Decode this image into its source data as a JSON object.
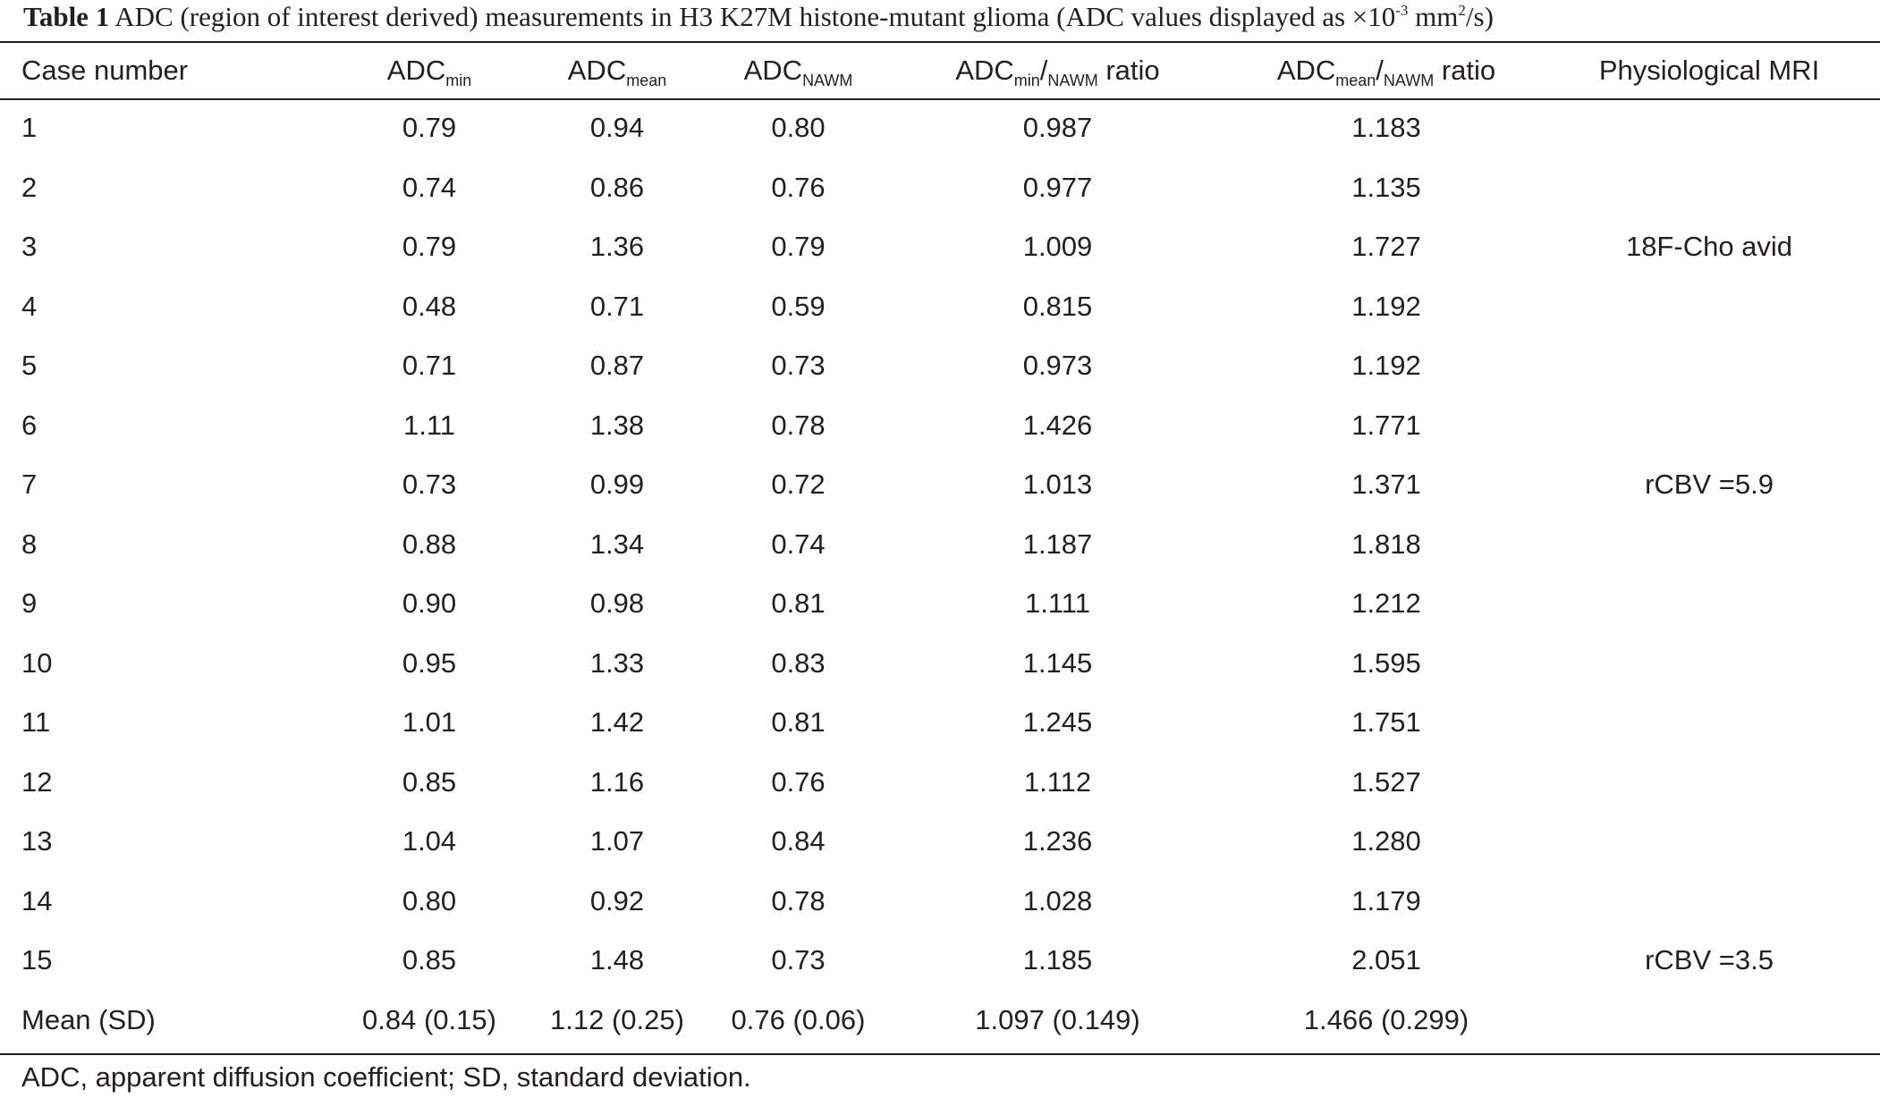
{
  "caption": {
    "label": "Table 1",
    "text_before_sup": "ADC (region of interest derived) measurements in H3 K27M histone-mutant glioma (ADC values displayed as ×10",
    "sup1": "-3",
    "text_mid": " mm",
    "sup2": "2",
    "text_after": "/s)"
  },
  "headers": {
    "case": "Case number",
    "adc_min": {
      "base": "ADC",
      "sub": "min"
    },
    "adc_mean": {
      "base": "ADC",
      "sub": "mean"
    },
    "adc_nawm": {
      "base": "ADC",
      "sub": "NAWM"
    },
    "min_ratio": {
      "base": "ADC",
      "sub1": "min",
      "slash": "/",
      "sub2": "NAWM",
      "suffix": " ratio"
    },
    "mean_ratio": {
      "base": "ADC",
      "sub1": "mean",
      "slash": "/",
      "sub2": "NAWM",
      "suffix": " ratio"
    },
    "physio": "Physiological MRI"
  },
  "rows": [
    [
      "1",
      "0.79",
      "0.94",
      "0.80",
      "0.987",
      "1.183",
      ""
    ],
    [
      "2",
      "0.74",
      "0.86",
      "0.76",
      "0.977",
      "1.135",
      ""
    ],
    [
      "3",
      "0.79",
      "1.36",
      "0.79",
      "1.009",
      "1.727",
      "18F-Cho avid"
    ],
    [
      "4",
      "0.48",
      "0.71",
      "0.59",
      "0.815",
      "1.192",
      ""
    ],
    [
      "5",
      "0.71",
      "0.87",
      "0.73",
      "0.973",
      "1.192",
      ""
    ],
    [
      "6",
      "1.11",
      "1.38",
      "0.78",
      "1.426",
      "1.771",
      ""
    ],
    [
      "7",
      "0.73",
      "0.99",
      "0.72",
      "1.013",
      "1.371",
      "rCBV =5.9"
    ],
    [
      "8",
      "0.88",
      "1.34",
      "0.74",
      "1.187",
      "1.818",
      ""
    ],
    [
      "9",
      "0.90",
      "0.98",
      "0.81",
      "1.111",
      "1.212",
      ""
    ],
    [
      "10",
      "0.95",
      "1.33",
      "0.83",
      "1.145",
      "1.595",
      ""
    ],
    [
      "11",
      "1.01",
      "1.42",
      "0.81",
      "1.245",
      "1.751",
      ""
    ],
    [
      "12",
      "0.85",
      "1.16",
      "0.76",
      "1.112",
      "1.527",
      ""
    ],
    [
      "13",
      "1.04",
      "1.07",
      "0.84",
      "1.236",
      "1.280",
      ""
    ],
    [
      "14",
      "0.80",
      "0.92",
      "0.78",
      "1.028",
      "1.179",
      ""
    ],
    [
      "15",
      "0.85",
      "1.48",
      "0.73",
      "1.185",
      "2.051",
      "rCBV =3.5"
    ],
    [
      "Mean (SD)",
      "0.84 (0.15)",
      "1.12 (0.25)",
      "0.76 (0.06)",
      "1.097 (0.149)",
      "1.466 (0.299)",
      ""
    ]
  ],
  "footnote": "ADC, apparent diffusion coefficient; SD, standard deviation."
}
